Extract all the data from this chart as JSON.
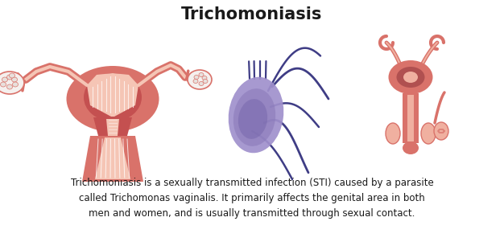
{
  "title": "Trichomoniasis",
  "title_fontsize": 15,
  "title_fontweight": "bold",
  "body_text": "Trichomoniasis is a sexually transmitted infection (STI) caused by a parasite\ncalled Trichomonas vaginalis. It primarily affects the genital area in both\nmen and women, and is usually transmitted through sexual contact.",
  "body_fontsize": 8.5,
  "background_color": "#ffffff",
  "uterus_outer": "#d9726a",
  "uterus_mid": "#c45050",
  "uterus_inner_light": "#f5c5b5",
  "uterus_dark": "#a03030",
  "ovary_white": "#f5f0ee",
  "ovary_bump": "#e8e0dc",
  "tube_color": "#d9726a",
  "parasite_lavender": "#a090cc",
  "parasite_mid": "#8878b8",
  "parasite_dark": "#6858a0",
  "parasite_tail": "#2a2878",
  "male_salmon": "#d9726a",
  "male_light": "#f0b0a0",
  "male_dark": "#b05050",
  "text_color": "#1a1a1a"
}
